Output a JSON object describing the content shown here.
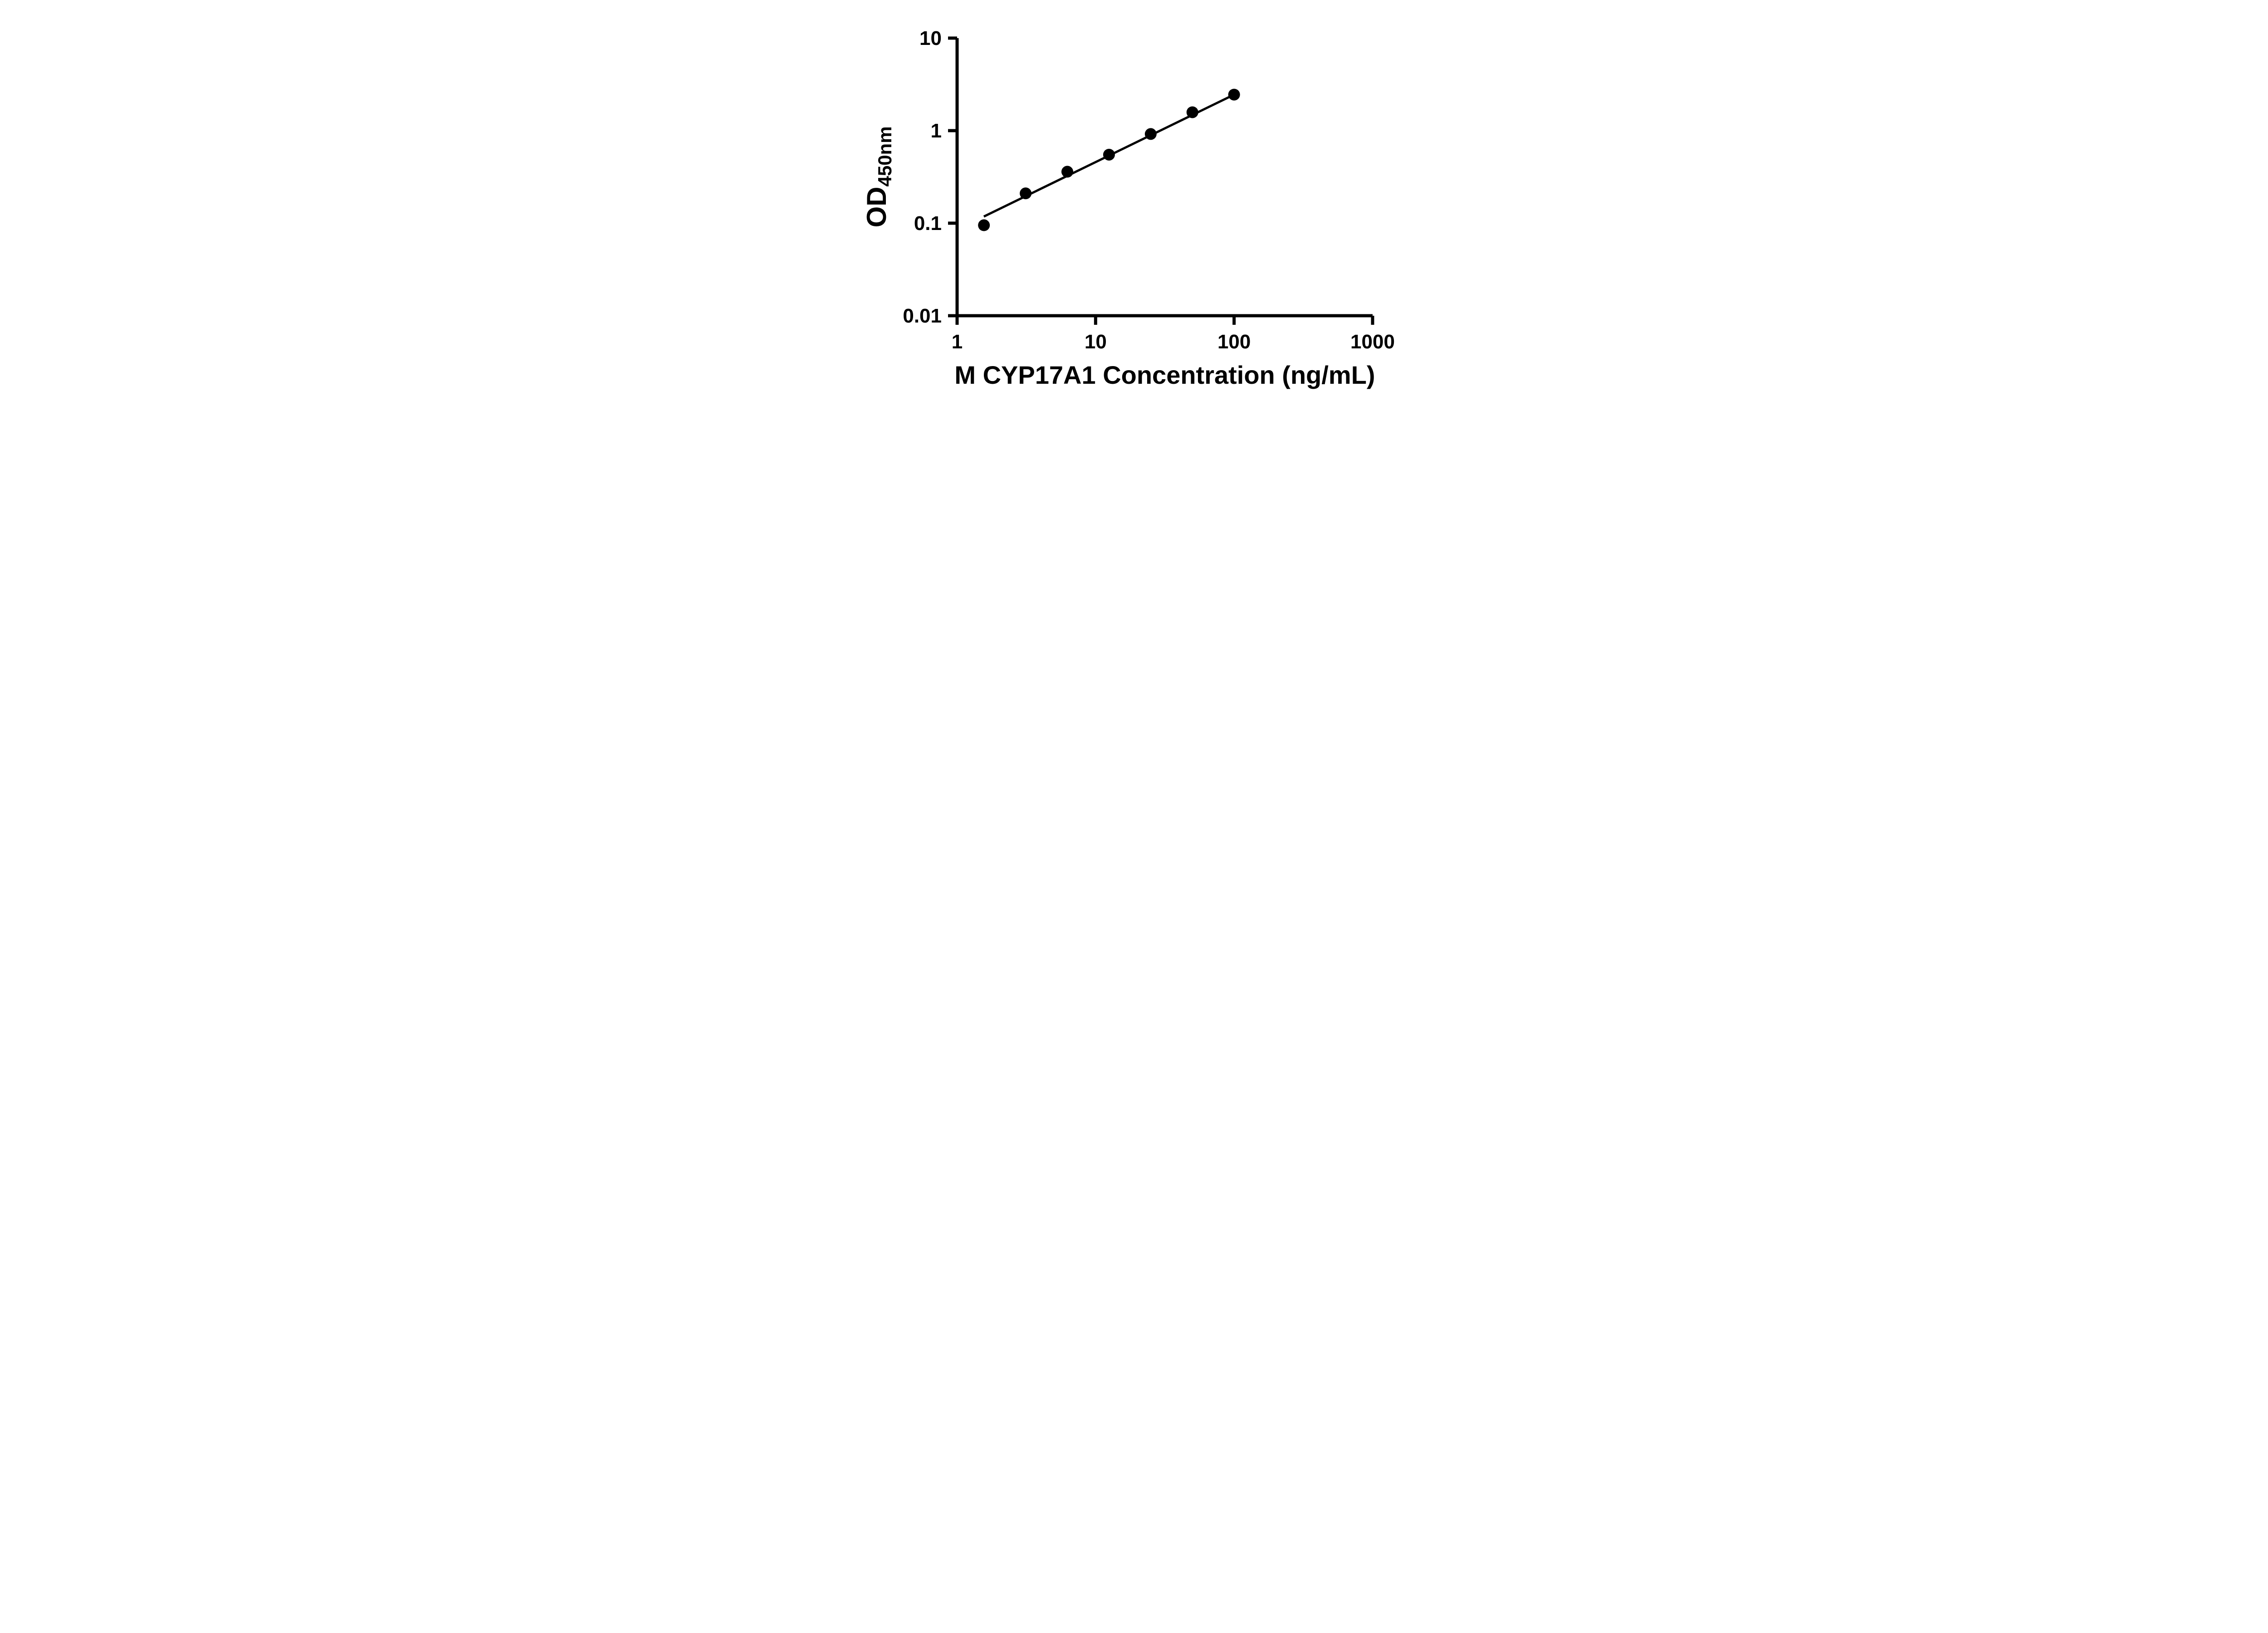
{
  "figure": {
    "background": "#ffffff"
  },
  "chart_data": {
    "type": "scatter",
    "title": "",
    "xlabel": "M CYP17A1 Concentration (ng/mL)",
    "ylabel_main": "OD",
    "ylabel_sub": "450nm",
    "x_scale": "log",
    "y_scale": "log",
    "xlim": [
      1,
      1000
    ],
    "ylim": [
      0.01,
      10
    ],
    "grid": false,
    "legend": "none",
    "x_ticks": [
      1,
      10,
      100,
      1000
    ],
    "x_tick_labels": [
      "1",
      "10",
      "100",
      "1000"
    ],
    "y_ticks": [
      0.01,
      0.1,
      1,
      10
    ],
    "y_tick_labels": [
      "0.01",
      "0.1",
      "1",
      "10"
    ],
    "points": [
      {
        "x": 1.5625,
        "y": 0.095
      },
      {
        "x": 3.125,
        "y": 0.21
      },
      {
        "x": 6.25,
        "y": 0.36
      },
      {
        "x": 12.5,
        "y": 0.55
      },
      {
        "x": 25,
        "y": 0.92
      },
      {
        "x": 50,
        "y": 1.58
      },
      {
        "x": 100,
        "y": 2.45
      }
    ],
    "trendline": {
      "x1": 1.56,
      "y1": 0.118,
      "x2": 100,
      "y2": 2.45
    },
    "colors": {
      "axis": "#000000",
      "point": "#000000",
      "line": "#000000",
      "text": "#000000"
    }
  }
}
